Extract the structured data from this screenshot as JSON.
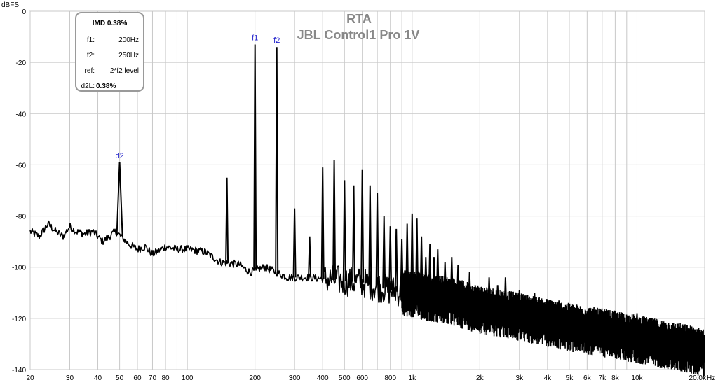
{
  "chart_data": {
    "type": "line",
    "title": "RTA",
    "subtitle": "JBL Control1 Pro 1V",
    "ylabel": "dBFS",
    "xlabel": "Hz",
    "x_scale": "log",
    "xlim": [
      20,
      20000
    ],
    "ylim": [
      -140,
      0
    ],
    "grid": true,
    "y_ticks": [
      0,
      -20,
      -40,
      -60,
      -80,
      -100,
      -120,
      -140
    ],
    "x_ticks": [
      {
        "v": 20,
        "label": "20"
      },
      {
        "v": 30,
        "label": "30"
      },
      {
        "v": 40,
        "label": "40"
      },
      {
        "v": 50,
        "label": "50"
      },
      {
        "v": 60,
        "label": "60"
      },
      {
        "v": 70,
        "label": "70"
      },
      {
        "v": 80,
        "label": "80"
      },
      {
        "v": 100,
        "label": "100"
      },
      {
        "v": 200,
        "label": "200"
      },
      {
        "v": 300,
        "label": "300"
      },
      {
        "v": 400,
        "label": "400"
      },
      {
        "v": 500,
        "label": "500"
      },
      {
        "v": 600,
        "label": "600"
      },
      {
        "v": 800,
        "label": "800"
      },
      {
        "v": 1000,
        "label": "1k"
      },
      {
        "v": 2000,
        "label": "2k"
      },
      {
        "v": 3000,
        "label": "3k"
      },
      {
        "v": 4000,
        "label": "4k"
      },
      {
        "v": 5000,
        "label": "5k"
      },
      {
        "v": 6000,
        "label": "6k"
      },
      {
        "v": 7000,
        "label": "7k"
      },
      {
        "v": 8000,
        "label": "8k"
      },
      {
        "v": 10000,
        "label": "10k"
      },
      {
        "v": 20000,
        "label": "20.0k"
      }
    ],
    "minor_grid_x": [
      90,
      700,
      900,
      9000
    ],
    "markers": [
      {
        "label": "f1",
        "x": 200,
        "y": -13
      },
      {
        "label": "f2",
        "x": 250,
        "y": -14
      },
      {
        "label": "d2",
        "x": 50,
        "y": -59
      }
    ],
    "peaks": [
      {
        "x": 50,
        "y": -59
      },
      {
        "x": 150,
        "y": -65
      },
      {
        "x": 200,
        "y": -13
      },
      {
        "x": 250,
        "y": -14
      },
      {
        "x": 300,
        "y": -77
      },
      {
        "x": 350,
        "y": -88
      },
      {
        "x": 400,
        "y": -61
      },
      {
        "x": 450,
        "y": -58
      },
      {
        "x": 500,
        "y": -66
      },
      {
        "x": 550,
        "y": -68
      },
      {
        "x": 600,
        "y": -62
      },
      {
        "x": 650,
        "y": -68
      },
      {
        "x": 700,
        "y": -71
      },
      {
        "x": 750,
        "y": -80
      },
      {
        "x": 800,
        "y": -84
      },
      {
        "x": 850,
        "y": -85
      },
      {
        "x": 900,
        "y": -89
      },
      {
        "x": 950,
        "y": -83
      },
      {
        "x": 1000,
        "y": -79
      },
      {
        "x": 1050,
        "y": -81
      },
      {
        "x": 1100,
        "y": -88
      },
      {
        "x": 1150,
        "y": -96
      },
      {
        "x": 1200,
        "y": -91
      },
      {
        "x": 1250,
        "y": -96
      },
      {
        "x": 1300,
        "y": -93
      },
      {
        "x": 1400,
        "y": -98
      },
      {
        "x": 1500,
        "y": -96
      },
      {
        "x": 1600,
        "y": -99
      },
      {
        "x": 1800,
        "y": -102
      },
      {
        "x": 2200,
        "y": -104
      },
      {
        "x": 2400,
        "y": -107
      },
      {
        "x": 2600,
        "y": -104
      },
      {
        "x": 3000,
        "y": -109
      },
      {
        "x": 3500,
        "y": -110
      },
      {
        "x": 4500,
        "y": -113
      },
      {
        "x": 6000,
        "y": -118
      },
      {
        "x": 8000,
        "y": -119
      },
      {
        "x": 10000,
        "y": -118
      }
    ],
    "noise_floor": [
      {
        "x": 20,
        "y": -86
      },
      {
        "x": 22,
        "y": -88
      },
      {
        "x": 24,
        "y": -83
      },
      {
        "x": 26,
        "y": -86
      },
      {
        "x": 28,
        "y": -88
      },
      {
        "x": 30,
        "y": -84
      },
      {
        "x": 32,
        "y": -86
      },
      {
        "x": 35,
        "y": -87
      },
      {
        "x": 38,
        "y": -86
      },
      {
        "x": 42,
        "y": -90
      },
      {
        "x": 45,
        "y": -88
      },
      {
        "x": 48,
        "y": -86
      },
      {
        "x": 55,
        "y": -91
      },
      {
        "x": 60,
        "y": -93
      },
      {
        "x": 65,
        "y": -92
      },
      {
        "x": 70,
        "y": -95
      },
      {
        "x": 80,
        "y": -92
      },
      {
        "x": 90,
        "y": -93
      },
      {
        "x": 100,
        "y": -93
      },
      {
        "x": 120,
        "y": -94
      },
      {
        "x": 140,
        "y": -98
      },
      {
        "x": 170,
        "y": -99
      },
      {
        "x": 190,
        "y": -102
      },
      {
        "x": 220,
        "y": -100
      },
      {
        "x": 280,
        "y": -104
      },
      {
        "x": 350,
        "y": -104
      },
      {
        "x": 450,
        "y": -105
      },
      {
        "x": 600,
        "y": -106
      },
      {
        "x": 800,
        "y": -109
      },
      {
        "x": 1000,
        "y": -110
      },
      {
        "x": 1500,
        "y": -113
      },
      {
        "x": 2000,
        "y": -116
      },
      {
        "x": 3000,
        "y": -119
      },
      {
        "x": 5000,
        "y": -123
      },
      {
        "x": 8000,
        "y": -126
      },
      {
        "x": 12000,
        "y": -129
      },
      {
        "x": 16000,
        "y": -131
      },
      {
        "x": 20000,
        "y": -133
      }
    ]
  },
  "info_box": {
    "header": "IMD 0.38%",
    "rows": [
      {
        "label": "f1:",
        "value": "200Hz"
      },
      {
        "label": "f2:",
        "value": "250Hz"
      },
      {
        "label": "ref:",
        "value": "2*f2 level"
      },
      {
        "label": "d2L:",
        "value": "0.38%"
      }
    ]
  },
  "colors": {
    "trace": "#000000",
    "grid": "#c8c8c8",
    "marker": "#1f1fcc",
    "title": "#888888",
    "box_border": "#9a9a9a"
  }
}
